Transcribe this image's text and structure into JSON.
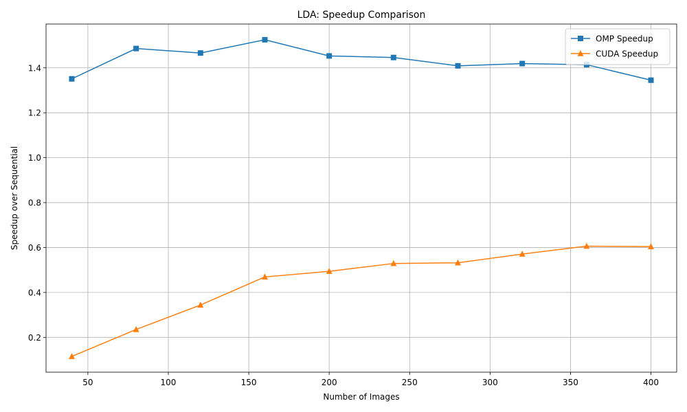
{
  "chart_data": {
    "type": "line",
    "title": "LDA: Speedup Comparison",
    "xlabel": "Number of Images",
    "ylabel": "Speedup over Sequential",
    "x": [
      40,
      80,
      120,
      160,
      200,
      240,
      280,
      320,
      360,
      400
    ],
    "series": [
      {
        "name": "OMP Speedup",
        "values": [
          1.351,
          1.486,
          1.466,
          1.525,
          1.453,
          1.446,
          1.409,
          1.419,
          1.414,
          1.345
        ],
        "color": "#1f77b4",
        "marker": "square"
      },
      {
        "name": "CUDA Speedup",
        "values": [
          0.115,
          0.235,
          0.344,
          0.469,
          0.494,
          0.529,
          0.532,
          0.571,
          0.606,
          0.604
        ],
        "color": "#ff7f0e",
        "marker": "triangle"
      }
    ],
    "xlim": [
      24,
      416
    ],
    "ylim": [
      0.045,
      1.595
    ],
    "xticks": [
      50,
      100,
      150,
      200,
      250,
      300,
      350,
      400
    ],
    "yticks": [
      0.2,
      0.4,
      0.6,
      0.8,
      1.0,
      1.2,
      1.4
    ],
    "ytick_labels": [
      "0.2",
      "0.4",
      "0.6",
      "0.8",
      "1.0",
      "1.2",
      "1.4"
    ],
    "grid": true,
    "legend_position": "top-right"
  }
}
